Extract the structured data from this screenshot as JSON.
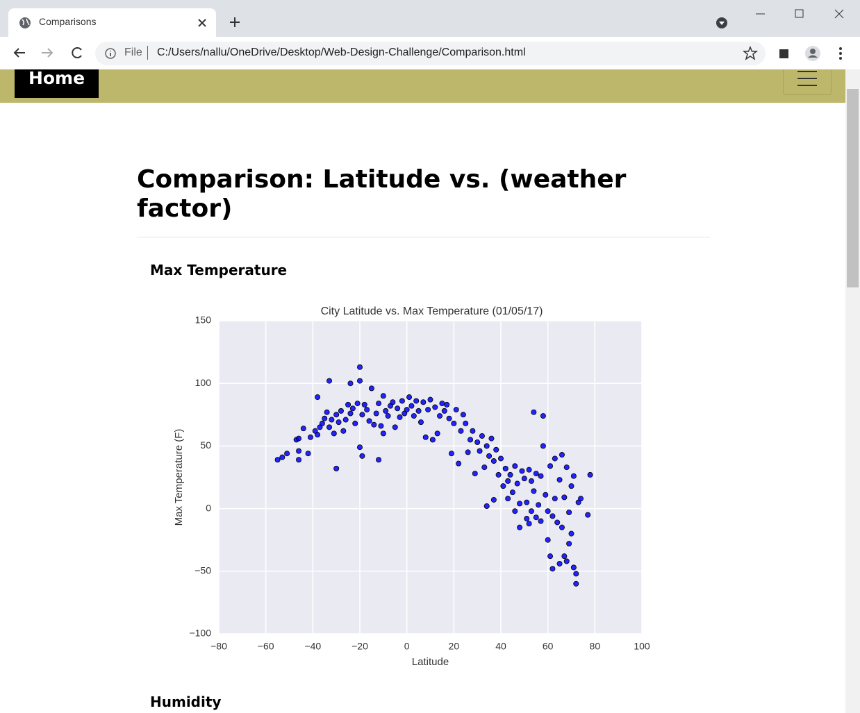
{
  "browser": {
    "tab_title": "Comparisons",
    "url_scheme": "File",
    "url": "C:/Users/nallu/OneDrive/Desktop/Web-Design-Challenge/Comparison.html"
  },
  "navbar": {
    "brand": "Home"
  },
  "heading": "Comparison: Latitude vs. (weather factor)",
  "sections": [
    "Max Temperature",
    "Humidity"
  ],
  "chart_data": {
    "type": "scatter",
    "title": "City Latitude vs. Max Temperature (01/05/17)",
    "x_label": "Latitude",
    "y_label": "Max Temperature (F)",
    "color": "#0000ff",
    "grid": true,
    "xlim": [
      -80,
      100
    ],
    "ylim": [
      -100,
      150
    ],
    "xticks": [
      {
        "value": -80,
        "label": "−80"
      },
      {
        "value": -60,
        "label": "−60"
      },
      {
        "value": -40,
        "label": "−40"
      },
      {
        "value": -20,
        "label": "−20"
      },
      0,
      20,
      40,
      60,
      80,
      100
    ],
    "yticks": [
      {
        "value": -100,
        "label": "−100"
      },
      {
        "value": -50,
        "label": "−50"
      },
      0,
      50,
      100,
      150
    ],
    "x": [
      -55,
      -53,
      -51,
      -47,
      -46,
      -46,
      -46,
      -44,
      -42,
      -41,
      -39,
      -38,
      -38,
      -37,
      -36,
      -35,
      -34,
      -33,
      -33,
      -32,
      -31,
      -30,
      -30,
      -29,
      -28,
      -27,
      -26,
      -25,
      -24,
      -24,
      -23,
      -22,
      -21,
      -20,
      -20,
      -20,
      -19,
      -19,
      -18,
      -17,
      -16,
      -15,
      -14,
      -13,
      -12,
      -12,
      -11,
      -10,
      -10,
      -9,
      -8,
      -7,
      -6,
      -5,
      -4,
      -3,
      -2,
      -1,
      0,
      1,
      2,
      3,
      4,
      5,
      6,
      7,
      8,
      9,
      10,
      11,
      12,
      13,
      14,
      15,
      16,
      17,
      18,
      19,
      20,
      21,
      22,
      23,
      24,
      25,
      26,
      27,
      28,
      29,
      30,
      31,
      32,
      33,
      34,
      34,
      35,
      36,
      37,
      37,
      38,
      39,
      40,
      41,
      42,
      43,
      43,
      44,
      45,
      46,
      46,
      47,
      48,
      48,
      49,
      50,
      51,
      51,
      52,
      52,
      53,
      53,
      54,
      54,
      55,
      55,
      56,
      57,
      57,
      58,
      58,
      59,
      60,
      60,
      61,
      61,
      62,
      62,
      63,
      63,
      64,
      65,
      65,
      66,
      66,
      67,
      67,
      68,
      68,
      69,
      69,
      70,
      70,
      71,
      71,
      72,
      72,
      73,
      74,
      77,
      78
    ],
    "values": [
      39,
      41,
      44,
      55,
      56,
      46,
      39,
      64,
      44,
      57,
      62,
      89,
      59,
      65,
      68,
      72,
      77,
      102,
      65,
      71,
      60,
      32,
      75,
      69,
      78,
      62,
      71,
      83,
      100,
      76,
      80,
      68,
      84,
      113,
      102,
      49,
      42,
      75,
      83,
      79,
      70,
      96,
      67,
      76,
      84,
      39,
      66,
      60,
      90,
      78,
      74,
      82,
      85,
      65,
      80,
      73,
      86,
      76,
      79,
      89,
      82,
      74,
      86,
      78,
      69,
      85,
      57,
      79,
      87,
      55,
      81,
      60,
      74,
      84,
      78,
      83,
      72,
      44,
      68,
      79,
      36,
      62,
      75,
      68,
      45,
      55,
      62,
      28,
      53,
      46,
      58,
      33,
      2,
      50,
      42,
      56,
      38,
      7,
      47,
      27,
      40,
      18,
      32,
      22,
      8,
      27,
      13,
      -2,
      34,
      20,
      4,
      -15,
      30,
      24,
      5,
      -8,
      31,
      -12,
      22,
      -2,
      77,
      14,
      28,
      -7,
      3,
      -10,
      26,
      74,
      50,
      11,
      -2,
      -25,
      -38,
      34,
      -6,
      -48,
      40,
      8,
      -11,
      23,
      -44,
      43,
      -15,
      -38,
      9,
      33,
      -42,
      -3,
      -28,
      18,
      -20,
      -47,
      26,
      -52,
      -60,
      5,
      8,
      -5,
      27
    ]
  }
}
